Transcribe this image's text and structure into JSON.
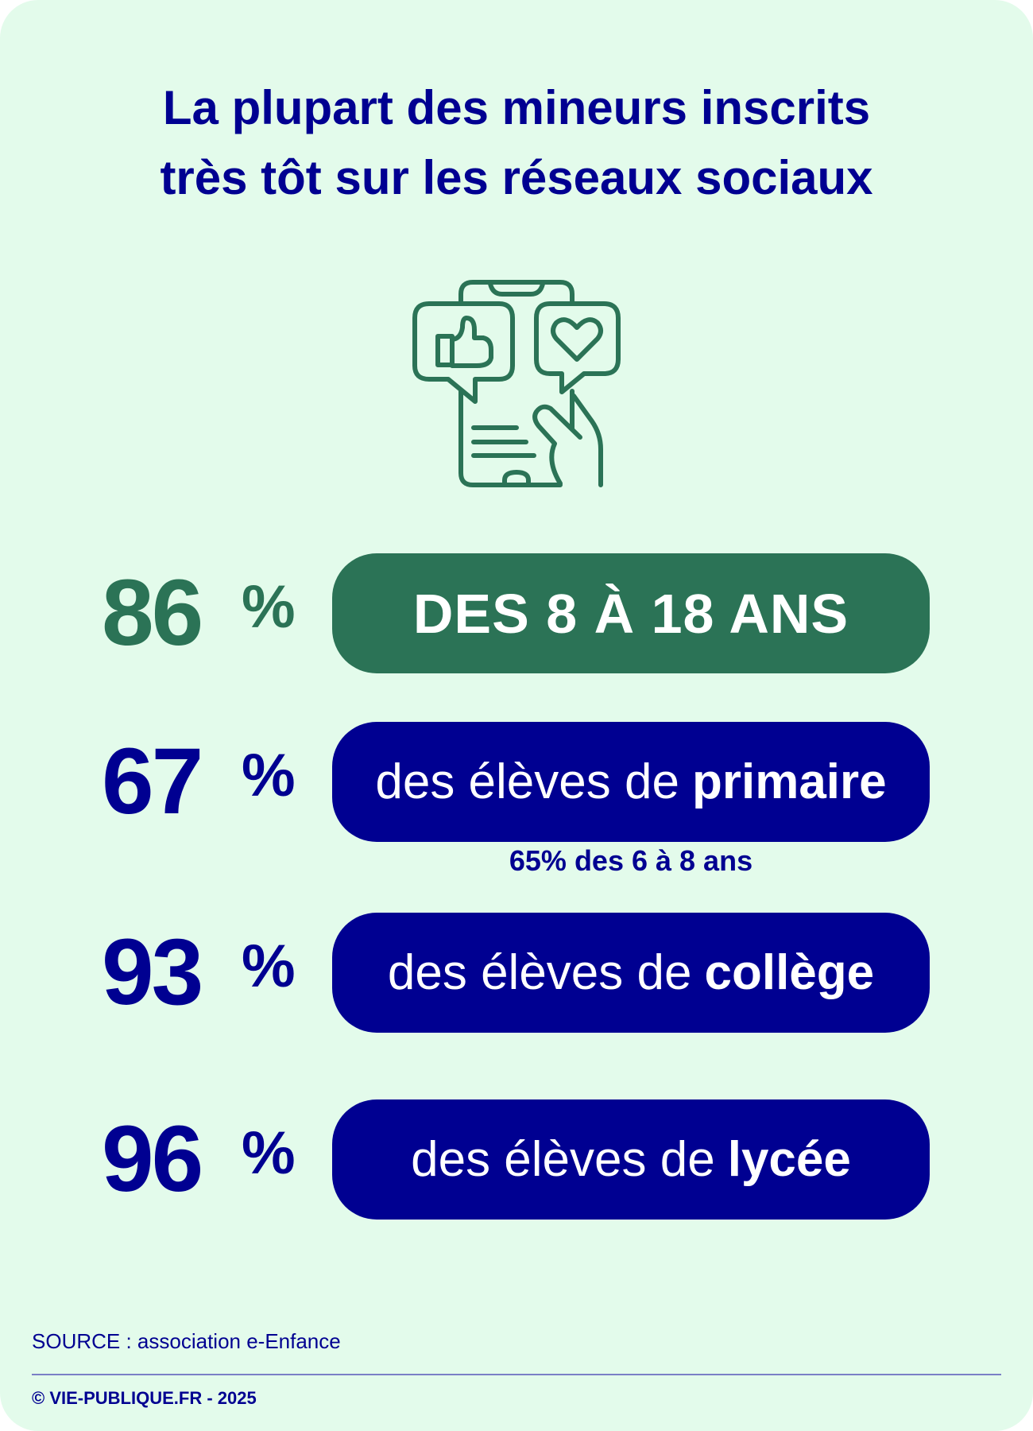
{
  "title": {
    "line1": "La plupart des mineurs inscrits",
    "line2": "très tôt sur les réseaux sociaux"
  },
  "icon": "phone-like-heart-icon",
  "colors": {
    "background": "#e3fbeb",
    "green": "#2b7356",
    "navy": "#000091"
  },
  "stats": [
    {
      "value": "86",
      "unit": "%",
      "label_caps": "DES 8 À 18 ANS"
    },
    {
      "value": "67",
      "unit": "%",
      "label": "des élèves de",
      "label_bold": "primaire",
      "note": "65% des 6 à 8 ans"
    },
    {
      "value": "93",
      "unit": "%",
      "label": "des élèves de",
      "label_bold": "collège"
    },
    {
      "value": "96",
      "unit": "%",
      "label": "des élèves de",
      "label_bold": "lycée"
    }
  ],
  "footer": {
    "source": "SOURCE : association e-Enfance",
    "copyright": "© VIE-PUBLIQUE.FR - 2025"
  }
}
